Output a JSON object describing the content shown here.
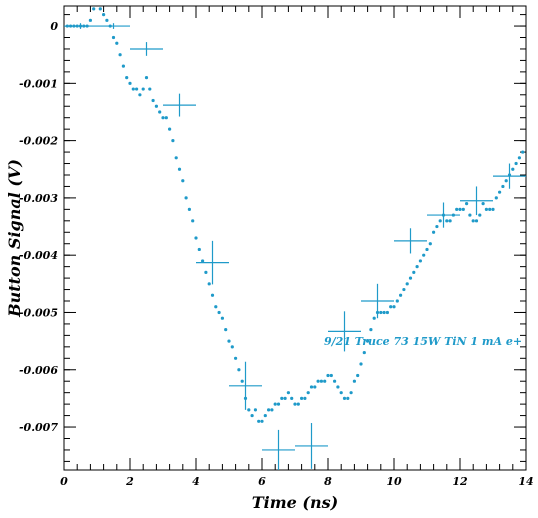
{
  "chart_data": {
    "type": "scatter",
    "xlabel": "Time (ns)",
    "ylabel": "Button Signal (V)",
    "xlim": [
      0,
      14
    ],
    "ylim": [
      -0.00775,
      0.00035
    ],
    "xticks": [
      0,
      2,
      4,
      6,
      8,
      10,
      12,
      14
    ],
    "xtick_labels": [
      "0",
      "2",
      "4",
      "6",
      "8",
      "10",
      "12",
      "14"
    ],
    "yticks": [
      0,
      -0.001,
      -0.002,
      -0.003,
      -0.004,
      -0.005,
      -0.006,
      -0.007
    ],
    "ytick_labels": [
      "0",
      "-0.001",
      "-0.002",
      "-0.003",
      "-0.004",
      "-0.005",
      "-0.006",
      "-0.007"
    ],
    "annotation": "9/21 Truce 73 15W TiN 1 mA e+",
    "colors": {
      "marker": "#1f9ac9",
      "axis": "#000000"
    },
    "grid": false,
    "raw_points": {
      "x": [
        0.1,
        0.2,
        0.3,
        0.4,
        0.5,
        0.6,
        0.7,
        0.8,
        0.9,
        1.0,
        1.1,
        1.2,
        1.3,
        1.4,
        1.5,
        1.6,
        1.7,
        1.8,
        1.9,
        2.0,
        2.1,
        2.2,
        2.3,
        2.4,
        2.5,
        2.6,
        2.7,
        2.8,
        2.9,
        3.0,
        3.1,
        3.2,
        3.3,
        3.4,
        3.5,
        3.6,
        3.7,
        3.8,
        3.9,
        4.0,
        4.1,
        4.2,
        4.3,
        4.4,
        4.5,
        4.6,
        4.7,
        4.8,
        4.9,
        5.0,
        5.1,
        5.2,
        5.3,
        5.4,
        5.5,
        5.6,
        5.7,
        5.8,
        5.9,
        6.0,
        6.1,
        6.2,
        6.3,
        6.4,
        6.5,
        6.6,
        6.7,
        6.8,
        6.9,
        7.0,
        7.1,
        7.2,
        7.3,
        7.4,
        7.5,
        7.6,
        7.7,
        7.8,
        7.9,
        8.0,
        8.1,
        8.2,
        8.3,
        8.4,
        8.5,
        8.6,
        8.7,
        8.8,
        8.9,
        9.0,
        9.1,
        9.2,
        9.3,
        9.4,
        9.5,
        9.6,
        9.7,
        9.8,
        9.9,
        10.0,
        10.1,
        10.2,
        10.3,
        10.4,
        10.5,
        10.6,
        10.7,
        10.8,
        10.9,
        11.0,
        11.1,
        11.2,
        11.3,
        11.4,
        11.5,
        11.6,
        11.7,
        11.8,
        11.9,
        12.0,
        12.1,
        12.2,
        12.3,
        12.4,
        12.5,
        12.6,
        12.7,
        12.8,
        12.9,
        13.0,
        13.1,
        13.2,
        13.3,
        13.4,
        13.5,
        13.6,
        13.7,
        13.8,
        13.9
      ],
      "y": [
        0,
        0,
        0,
        0,
        0,
        0,
        0,
        0.0001,
        0.0003,
        0.0004,
        0.0003,
        0.0002,
        0.0001,
        0,
        -0.0002,
        -0.0003,
        -0.0005,
        -0.0007,
        -0.0009,
        -0.001,
        -0.0011,
        -0.0011,
        -0.0012,
        -0.0011,
        -0.0009,
        -0.0011,
        -0.0013,
        -0.0014,
        -0.0015,
        -0.0016,
        -0.0016,
        -0.0018,
        -0.002,
        -0.0023,
        -0.0025,
        -0.0027,
        -0.003,
        -0.0032,
        -0.0034,
        -0.0037,
        -0.0039,
        -0.0041,
        -0.0043,
        -0.0045,
        -0.0047,
        -0.0049,
        -0.005,
        -0.0051,
        -0.0053,
        -0.0055,
        -0.0056,
        -0.0058,
        -0.006,
        -0.0062,
        -0.0065,
        -0.0067,
        -0.0068,
        -0.0067,
        -0.0069,
        -0.0069,
        -0.0068,
        -0.0067,
        -0.0067,
        -0.0066,
        -0.0066,
        -0.0065,
        -0.0065,
        -0.0064,
        -0.0065,
        -0.0066,
        -0.0066,
        -0.0065,
        -0.0065,
        -0.0064,
        -0.0063,
        -0.0063,
        -0.0062,
        -0.0062,
        -0.0062,
        -0.0061,
        -0.0061,
        -0.0062,
        -0.0063,
        -0.0064,
        -0.0065,
        -0.0065,
        -0.0064,
        -0.0062,
        -0.0061,
        -0.0059,
        -0.0057,
        -0.0055,
        -0.0053,
        -0.0051,
        -0.005,
        -0.005,
        -0.005,
        -0.005,
        -0.0049,
        -0.0049,
        -0.0048,
        -0.0047,
        -0.0046,
        -0.0045,
        -0.0044,
        -0.0043,
        -0.0042,
        -0.0041,
        -0.004,
        -0.0039,
        -0.0038,
        -0.0036,
        -0.0035,
        -0.0034,
        -0.0033,
        -0.0034,
        -0.0034,
        -0.0033,
        -0.0032,
        -0.0032,
        -0.0032,
        -0.0031,
        -0.0033,
        -0.0034,
        -0.0034,
        -0.0033,
        -0.0031,
        -0.0032,
        -0.0032,
        -0.0032,
        -0.003,
        -0.0029,
        -0.0028,
        -0.0027,
        -0.0026,
        -0.0025,
        -0.0024,
        -0.0023,
        -0.0022
      ]
    },
    "binned_points": {
      "x": [
        0.5,
        1.5,
        2.5,
        3.5,
        4.5,
        5.5,
        6.5,
        7.5,
        8.5,
        9.5,
        10.5,
        11.5,
        12.5,
        13.5
      ],
      "y": [
        0,
        0,
        -0.0004,
        -0.00138,
        -0.00413,
        -0.00628,
        -0.0074,
        -0.00733,
        -0.00533,
        -0.0048,
        -0.00375,
        -0.0033,
        -0.00305,
        -0.00262
      ],
      "xerr": [
        0.5,
        0.5,
        0.5,
        0.5,
        0.5,
        0.5,
        0.5,
        0.5,
        0.5,
        0.5,
        0.5,
        0.5,
        0.5,
        0.5
      ],
      "yerr": [
        5e-05,
        5e-05,
        0.00012,
        0.0002,
        0.00038,
        0.00042,
        0.00035,
        0.0004,
        0.00035,
        0.0003,
        0.00022,
        0.00022,
        0.00025,
        0.00022
      ]
    }
  }
}
